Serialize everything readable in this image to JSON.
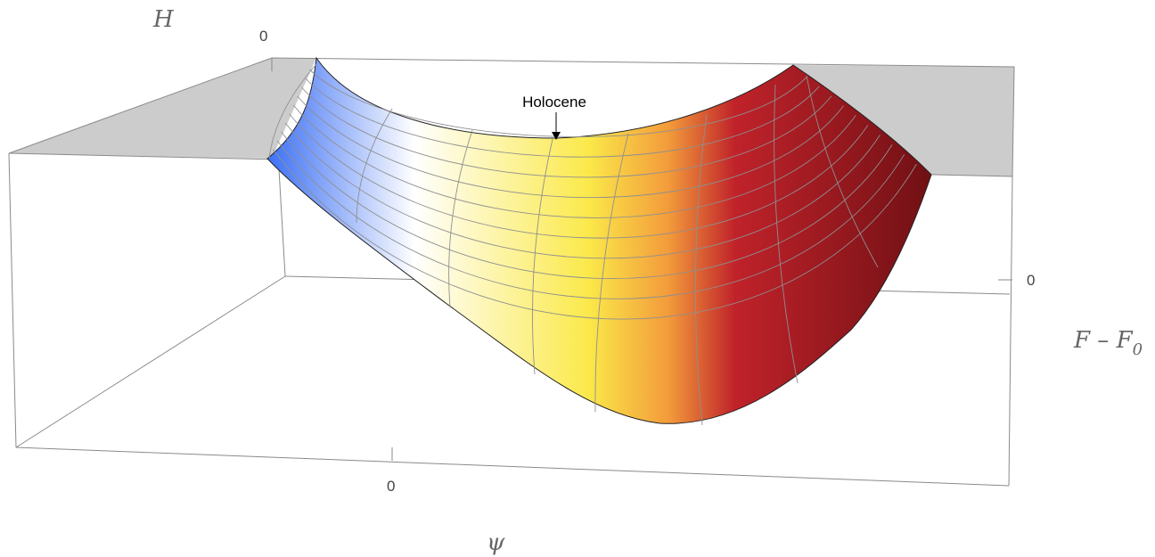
{
  "plot": {
    "axes": {
      "z_label": "H",
      "z_tick": "0",
      "y_label": "F – F",
      "y_label_subscript": "0",
      "y_tick": "0",
      "x_label": "ψ",
      "x_tick": "0"
    },
    "annotation": {
      "text": "Holocene"
    },
    "surface_colors": {
      "blue": "#3b6ff5",
      "white": "#ffffff",
      "yellow": "#fbe94a",
      "orange": "#f39b3b",
      "red": "#c0222a",
      "dark_red": "#6e1014"
    },
    "box_color": "#c8c8c8"
  }
}
